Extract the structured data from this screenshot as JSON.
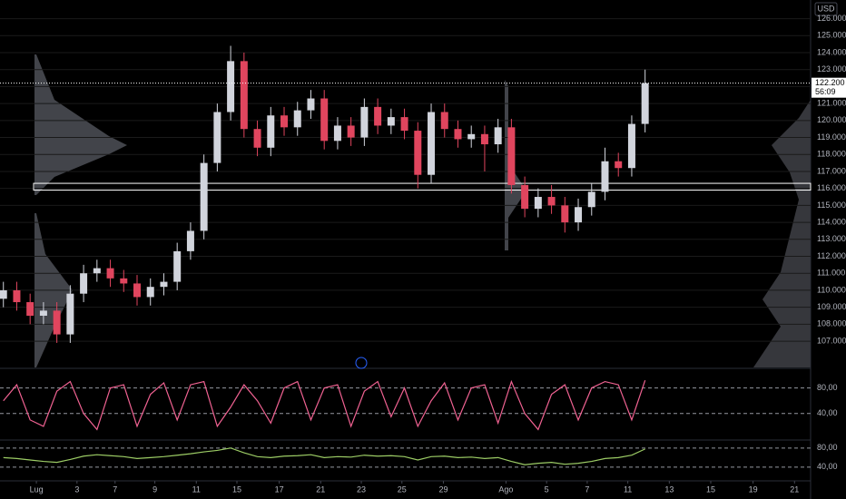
{
  "currency": "USD",
  "chart_data": [
    {
      "type": "candlestick",
      "x": [
        0.4,
        1.98,
        3.56,
        5.14,
        6.72,
        8.3,
        9.88,
        11.46,
        13.04,
        14.62,
        16.2,
        17.78,
        19.36,
        20.94,
        22.52,
        24.1,
        25.68,
        27.26,
        28.84,
        30.42,
        32,
        33.58,
        35.16,
        36.74,
        38.32,
        39.9,
        41.48,
        43.06,
        44.64,
        46.22,
        47.8,
        49.38,
        50.96,
        52.54,
        54.12,
        55.7,
        57.28,
        58.86,
        60.44,
        62.02,
        63.6,
        65.18,
        66.76,
        68.34,
        69.92,
        71.5,
        73.08,
        74.66,
        76.24
      ],
      "open": [
        109.5,
        110,
        109.3,
        108.5,
        108.8,
        107.4,
        109.8,
        111,
        111.3,
        110.7,
        110.4,
        109.6,
        110.2,
        110.5,
        112.3,
        113.5,
        117.5,
        120.5,
        123.5,
        119.5,
        118.4,
        120.3,
        119.6,
        120.6,
        121.3,
        118.8,
        119.7,
        119,
        120.8,
        119.7,
        120.2,
        119.4,
        116.8,
        120.5,
        119.5,
        118.9,
        119.2,
        118.6,
        119.6,
        116.2,
        114.8,
        115.5,
        115,
        114,
        114.9,
        115.8,
        117.6,
        117.2,
        119.8
      ],
      "high": [
        110.5,
        110.5,
        109.8,
        109.3,
        109.3,
        110.3,
        111.5,
        111.8,
        111.8,
        111.2,
        110.9,
        110.7,
        111,
        112.8,
        114,
        118,
        121,
        124.4,
        124,
        120,
        120.8,
        120.8,
        121.1,
        121.8,
        121.8,
        120.2,
        120.2,
        121.3,
        121.3,
        120.7,
        120.7,
        119.9,
        121,
        121,
        120,
        119.7,
        119.7,
        120.1,
        120.1,
        116.7,
        116,
        116.2,
        115.5,
        115.4,
        116.3,
        118.4,
        118.1,
        120.3,
        123
      ],
      "low": [
        109,
        108.8,
        108,
        108,
        106.9,
        106.9,
        109.3,
        110.5,
        110.2,
        109.9,
        109.1,
        109.1,
        109.7,
        110,
        111.8,
        113,
        117,
        120,
        119,
        117.9,
        117.9,
        119.1,
        119.1,
        120.1,
        118.3,
        118.3,
        118.5,
        118.5,
        119.2,
        119.2,
        118.9,
        116,
        116.3,
        119,
        118.4,
        118.4,
        117,
        118.1,
        115.7,
        114.3,
        114.3,
        114.5,
        113.4,
        113.5,
        114.4,
        115.3,
        116.7,
        116.7,
        119.3
      ],
      "close": [
        110,
        109.3,
        108.5,
        108.8,
        107.4,
        109.8,
        111,
        111.3,
        110.7,
        110.4,
        109.6,
        110.2,
        110.5,
        112.3,
        113.5,
        117.5,
        120.5,
        123.5,
        119.5,
        118.4,
        120.3,
        119.6,
        120.6,
        121.3,
        118.8,
        119.7,
        119,
        120.8,
        119.7,
        120.2,
        119.4,
        116.8,
        120.5,
        119.5,
        118.9,
        119.2,
        118.6,
        119.6,
        116.2,
        114.8,
        115.5,
        115,
        114,
        114.9,
        115.8,
        117.6,
        117.2,
        119.8,
        122.2
      ],
      "up_color": "#d1d4dc",
      "down_color": "#e0455e",
      "xlim": [
        0,
        95.8
      ],
      "xticks": [
        {
          "value": 4.3,
          "label": "Lug"
        },
        {
          "value": 9.1,
          "label": "3"
        },
        {
          "value": 13.6,
          "label": "7"
        },
        {
          "value": 18.3,
          "label": "9"
        },
        {
          "value": 23.2,
          "label": "11"
        },
        {
          "value": 28,
          "label": "15"
        },
        {
          "value": 33,
          "label": "17"
        },
        {
          "value": 37.9,
          "label": "21"
        },
        {
          "value": 42.7,
          "label": "23"
        },
        {
          "value": 47.5,
          "label": "25"
        },
        {
          "value": 52.4,
          "label": "29"
        },
        {
          "value": 59.8,
          "label": "Ago"
        },
        {
          "value": 64.6,
          "label": "5"
        },
        {
          "value": 69.4,
          "label": "7"
        },
        {
          "value": 74.2,
          "label": "11"
        },
        {
          "value": 79.1,
          "label": "13"
        },
        {
          "value": 84,
          "label": "15"
        },
        {
          "value": 89,
          "label": "19"
        },
        {
          "value": 93.9,
          "label": "21"
        }
      ],
      "ylim": [
        105.4,
        127.1
      ],
      "yticks": [
        {
          "value": 107,
          "label": "107.000"
        },
        {
          "value": 108,
          "label": "108.000"
        },
        {
          "value": 109,
          "label": "109.000"
        },
        {
          "value": 110,
          "label": "110.000"
        },
        {
          "value": 111,
          "label": "111.000"
        },
        {
          "value": 112,
          "label": "112.000"
        },
        {
          "value": 113,
          "label": "113.000"
        },
        {
          "value": 114,
          "label": "114.000"
        },
        {
          "value": 115,
          "label": "115.000"
        },
        {
          "value": 116,
          "label": "116.000"
        },
        {
          "value": 117,
          "label": "117.000"
        },
        {
          "value": 118,
          "label": "118.000"
        },
        {
          "value": 119,
          "label": "119.000"
        },
        {
          "value": 120,
          "label": "120.000"
        },
        {
          "value": 121,
          "label": "121.000"
        },
        {
          "value": 122,
          "label": "122.000"
        },
        {
          "value": 123,
          "label": "123.000"
        },
        {
          "value": 124,
          "label": "124.000"
        },
        {
          "value": 125,
          "label": "125.000"
        },
        {
          "value": 126,
          "label": "126.000"
        }
      ],
      "last_price": {
        "value": 122.2,
        "label": "122.200"
      },
      "countdown": "56:09",
      "highlight_range": [
        115.9,
        116.3
      ]
    },
    {
      "type": "line",
      "color": "#f06292",
      "values": [
        60,
        85,
        30,
        20,
        75,
        90,
        40,
        15,
        80,
        85,
        20,
        70,
        88,
        30,
        85,
        90,
        20,
        50,
        85,
        60,
        25,
        80,
        90,
        30,
        80,
        85,
        20,
        75,
        90,
        35,
        80,
        20,
        60,
        88,
        30,
        80,
        85,
        25,
        90,
        40,
        15,
        70,
        85,
        30,
        80,
        90,
        85,
        30,
        92
      ],
      "ylim": [
        0,
        105
      ],
      "yticks": [
        {
          "value": 80,
          "label": "80,00"
        },
        {
          "value": 40,
          "label": "40,00"
        }
      ]
    },
    {
      "type": "line",
      "color": "#9ccc65",
      "values": [
        60,
        58,
        55,
        52,
        50,
        56,
        63,
        66,
        64,
        62,
        58,
        60,
        62,
        65,
        68,
        72,
        75,
        80,
        70,
        62,
        60,
        63,
        64,
        66,
        60,
        62,
        61,
        65,
        63,
        64,
        62,
        55,
        62,
        63,
        60,
        61,
        58,
        60,
        52,
        45,
        48,
        50,
        46,
        48,
        52,
        58,
        60,
        65,
        78
      ],
      "ylim": [
        15,
        93
      ],
      "yticks": [
        {
          "value": 80,
          "label": "80,00"
        },
        {
          "value": 40,
          "label": "40,00"
        }
      ]
    }
  ]
}
